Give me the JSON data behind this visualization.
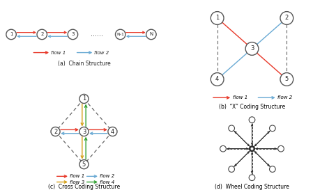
{
  "background": "#ffffff",
  "panel_a": {
    "nodes": [
      "1",
      "2",
      "3",
      "N-1",
      "N"
    ],
    "label": "(a)  Chain Structure",
    "flow1_label": "flow 1",
    "flow2_label": "flow 2"
  },
  "panel_b": {
    "nodes": [
      "1",
      "2",
      "3",
      "4",
      "5"
    ],
    "label": "(b)  “X” Coding Structure",
    "flow1_label": "flow 1",
    "flow2_label": "flow 2"
  },
  "panel_c": {
    "nodes": [
      "1",
      "2",
      "3",
      "4",
      "5"
    ],
    "label": "(c)  Cross Coding Structure",
    "flow1_label": "flow 1",
    "flow2_label": "flow 2",
    "flow3_label": "flow 3",
    "flow4_label": "flow 4"
  },
  "panel_d": {
    "label": "(d)  Wheel Coding Structure",
    "n_spokes": 8
  },
  "colors": {
    "red": "#e8392a",
    "blue": "#6aaad4",
    "yellow": "#d4a017",
    "green": "#2ea02e",
    "node_edge": "#555555",
    "dashed": "#666666"
  }
}
